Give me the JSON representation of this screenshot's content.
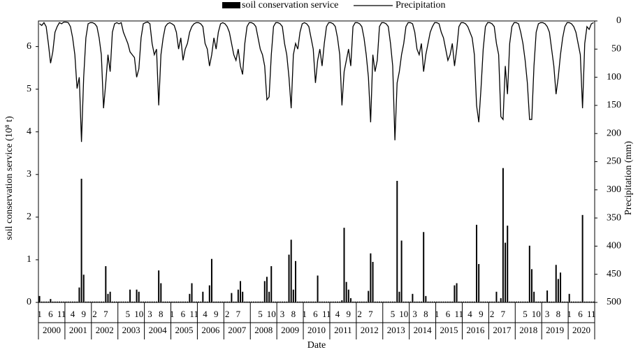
{
  "chart_data": {
    "type": "bar_line",
    "x_label": "Date",
    "y_label": "soil conservation service (10⁸ t)",
    "y2_label": "Precipitation (mm)",
    "categories": [
      1,
      null,
      null,
      null,
      null,
      6,
      null,
      null,
      null,
      null,
      11,
      null,
      null,
      null,
      null,
      4,
      null,
      null,
      null,
      null,
      9,
      null,
      null,
      null,
      null,
      2,
      null,
      null,
      null,
      null,
      7,
      null,
      null,
      null,
      null,
      null,
      null,
      null,
      null,
      null,
      5,
      null,
      null,
      null,
      null,
      10,
      null,
      null,
      null,
      null,
      3,
      null,
      null,
      null,
      null,
      8,
      null,
      null,
      null,
      null,
      1,
      null,
      null,
      null,
      null,
      6,
      null,
      null,
      null,
      null,
      11,
      null,
      null,
      null,
      null,
      4,
      null,
      null,
      null,
      null,
      9,
      null,
      null,
      null,
      null,
      2,
      null,
      null,
      null,
      null,
      7,
      null,
      null,
      null,
      null,
      null,
      null,
      null,
      null,
      null,
      5,
      null,
      null,
      null,
      null,
      10,
      null,
      null,
      null,
      null,
      3,
      null,
      null,
      null,
      null,
      8,
      null,
      null,
      null,
      null,
      1,
      null,
      null,
      null,
      null,
      6,
      null,
      null,
      null,
      null,
      11,
      null,
      null,
      null,
      null,
      4,
      null,
      null,
      null,
      null,
      9,
      null,
      null,
      null,
      null,
      2,
      null,
      null,
      null,
      null,
      7,
      null,
      null,
      null,
      null,
      null,
      null,
      null,
      null,
      null,
      5,
      null,
      null,
      null,
      null,
      10,
      null,
      null,
      null,
      null,
      3,
      null,
      null,
      null,
      null,
      8,
      null,
      null,
      null,
      null,
      1,
      null,
      null,
      null,
      null,
      6,
      null,
      null,
      null,
      null,
      11,
      null,
      null,
      null,
      null,
      4,
      null,
      null,
      null,
      null,
      9,
      null,
      null,
      null,
      null,
      2,
      null,
      null,
      null,
      null,
      7,
      null,
      null,
      null,
      null,
      null,
      null,
      null,
      null,
      null,
      5,
      null,
      null,
      null,
      null,
      10,
      null,
      null,
      null,
      null,
      3,
      null,
      null,
      null,
      null,
      8,
      null,
      null,
      null,
      null,
      1,
      null,
      null,
      null,
      null,
      6,
      null,
      null,
      null,
      null,
      11,
      null
    ],
    "years": [
      "2000",
      "2001",
      "2002",
      "2003",
      "2004",
      "2005",
      "2006",
      "2007",
      "2008",
      "2009",
      "2010",
      "2011",
      "2012",
      "2013",
      "2014",
      "2015",
      "2016",
      "2017",
      "2018",
      "2019",
      "2020"
    ],
    "ylim": [
      0,
      6.6
    ],
    "yticks": [
      0,
      1,
      2,
      3,
      4,
      5,
      6
    ],
    "y2lim": [
      0,
      500
    ],
    "y2_reversed": true,
    "y2ticks": [
      0,
      50,
      100,
      150,
      200,
      250,
      300,
      350,
      400,
      450,
      500
    ],
    "series": [
      {
        "name": "soil conservation service",
        "color": "#000000",
        "kind": "bar",
        "values": [
          0.15,
          0.02,
          0.02,
          0.02,
          0.02,
          0.08,
          0.02,
          0.02,
          0.02,
          0.02,
          0.02,
          0.02,
          0.02,
          0.02,
          0.02,
          0.02,
          0.02,
          0.02,
          0.35,
          2.9,
          0.65,
          0.02,
          0.02,
          0.02,
          0.02,
          0.02,
          0.02,
          0.02,
          0.02,
          0.02,
          0.85,
          0.2,
          0.25,
          0.02,
          0.02,
          0.02,
          0.02,
          0.02,
          0.02,
          0.02,
          0.02,
          0.3,
          0.02,
          0.02,
          0.3,
          0.25,
          0.02,
          0.02,
          0.02,
          0.02,
          0.02,
          0.02,
          0.02,
          0.02,
          0.75,
          0.45,
          0.02,
          0.02,
          0.02,
          0.02,
          0.02,
          0.02,
          0.02,
          0.02,
          0.02,
          0.02,
          0.02,
          0.02,
          0.2,
          0.45,
          0.02,
          0.02,
          0.02,
          0.02,
          0.25,
          0.02,
          0.02,
          0.4,
          1.02,
          0.02,
          0.02,
          0.02,
          0.02,
          0.02,
          0.02,
          0.02,
          0.02,
          0.22,
          0.02,
          0.02,
          0.3,
          0.5,
          0.25,
          0.02,
          0.02,
          0.02,
          0.02,
          0.02,
          0.02,
          0.02,
          0.02,
          0.02,
          0.5,
          0.6,
          0.25,
          0.85,
          0.02,
          0.02,
          0.02,
          0.02,
          0.02,
          0.02,
          0.02,
          1.12,
          1.47,
          0.3,
          0.97,
          0.02,
          0.02,
          0.02,
          0.02,
          0.02,
          0.02,
          0.02,
          0.02,
          0.02,
          0.63,
          0.02,
          0.02,
          0.02,
          0.02,
          0.02,
          0.02,
          0.02,
          0.02,
          0.02,
          0.02,
          0.05,
          1.75,
          0.48,
          0.3,
          0.1,
          0.02,
          0.02,
          0.02,
          0.02,
          0.02,
          0.02,
          0.02,
          0.27,
          1.15,
          0.95,
          0.02,
          0.02,
          0.02,
          0.02,
          0.02,
          0.02,
          0.02,
          0.02,
          0.02,
          0.02,
          2.85,
          0.25,
          1.45,
          0.02,
          0.02,
          0.02,
          0.02,
          0.2,
          0.02,
          0.02,
          0.02,
          0.02,
          1.65,
          0.15,
          0.02,
          0.02,
          0.02,
          0.02,
          0.02,
          0.02,
          0.02,
          0.02,
          0.02,
          0.02,
          0.02,
          0.02,
          0.4,
          0.45,
          0.02,
          0.02,
          0.02,
          0.02,
          0.02,
          0.02,
          0.02,
          0.02,
          1.82,
          0.9,
          0.02,
          0.02,
          0.02,
          0.02,
          0.02,
          0.02,
          0.02,
          0.25,
          0.02,
          0.1,
          3.15,
          1.4,
          1.8,
          0.02,
          0.02,
          0.02,
          0.02,
          0.02,
          0.02,
          0.02,
          0.02,
          0.02,
          1.33,
          0.78,
          0.25,
          0.02,
          0.02,
          0.02,
          0.02,
          0.02,
          0.28,
          0.02,
          0.02,
          0.02,
          0.88,
          0.55,
          0.7,
          0.02,
          0.02,
          0.02,
          0.2,
          0.02,
          0.02,
          0.02,
          0.02,
          0.02,
          2.05,
          0.02,
          0.02,
          0.02,
          0.02,
          0.02
        ]
      },
      {
        "name": "Precipitation",
        "color": "#000000",
        "kind": "line",
        "axis": "y2",
        "values": [
          5,
          8,
          3,
          10,
          40,
          75,
          55,
          20,
          10,
          3,
          5,
          2,
          2,
          3,
          10,
          30,
          60,
          120,
          100,
          215,
          100,
          30,
          5,
          3,
          3,
          5,
          10,
          30,
          60,
          155,
          110,
          60,
          90,
          20,
          5,
          3,
          5,
          3,
          20,
          30,
          40,
          55,
          60,
          65,
          100,
          85,
          30,
          5,
          3,
          2,
          5,
          40,
          60,
          50,
          150,
          60,
          30,
          10,
          5,
          3,
          5,
          8,
          20,
          50,
          30,
          70,
          50,
          40,
          20,
          10,
          5,
          3,
          3,
          5,
          10,
          40,
          50,
          80,
          60,
          30,
          50,
          20,
          5,
          3,
          5,
          10,
          20,
          40,
          60,
          70,
          50,
          80,
          95,
          40,
          10,
          3,
          3,
          5,
          10,
          30,
          50,
          60,
          80,
          140,
          135,
          60,
          10,
          3,
          3,
          5,
          10,
          40,
          60,
          100,
          155,
          60,
          40,
          50,
          20,
          5,
          3,
          5,
          10,
          30,
          50,
          110,
          70,
          50,
          80,
          40,
          10,
          3,
          3,
          5,
          10,
          30,
          60,
          150,
          90,
          70,
          50,
          80,
          10,
          3,
          3,
          5,
          10,
          30,
          60,
          100,
          180,
          60,
          90,
          70,
          10,
          3,
          3,
          5,
          10,
          40,
          80,
          212,
          110,
          90,
          60,
          40,
          10,
          3,
          3,
          5,
          20,
          50,
          60,
          40,
          90,
          60,
          40,
          20,
          10,
          3,
          3,
          5,
          20,
          30,
          50,
          70,
          60,
          40,
          80,
          50,
          10,
          3,
          3,
          5,
          10,
          20,
          30,
          60,
          150,
          180,
          120,
          50,
          10,
          3,
          3,
          5,
          10,
          40,
          60,
          170,
          175,
          80,
          130,
          40,
          10,
          3,
          3,
          5,
          20,
          40,
          70,
          110,
          175,
          175,
          80,
          20,
          5,
          3,
          3,
          5,
          10,
          20,
          50,
          80,
          130,
          100,
          60,
          30,
          10,
          3,
          3,
          5,
          10,
          20,
          40,
          60,
          155,
          40,
          10,
          15,
          5,
          3
        ]
      }
    ]
  }
}
